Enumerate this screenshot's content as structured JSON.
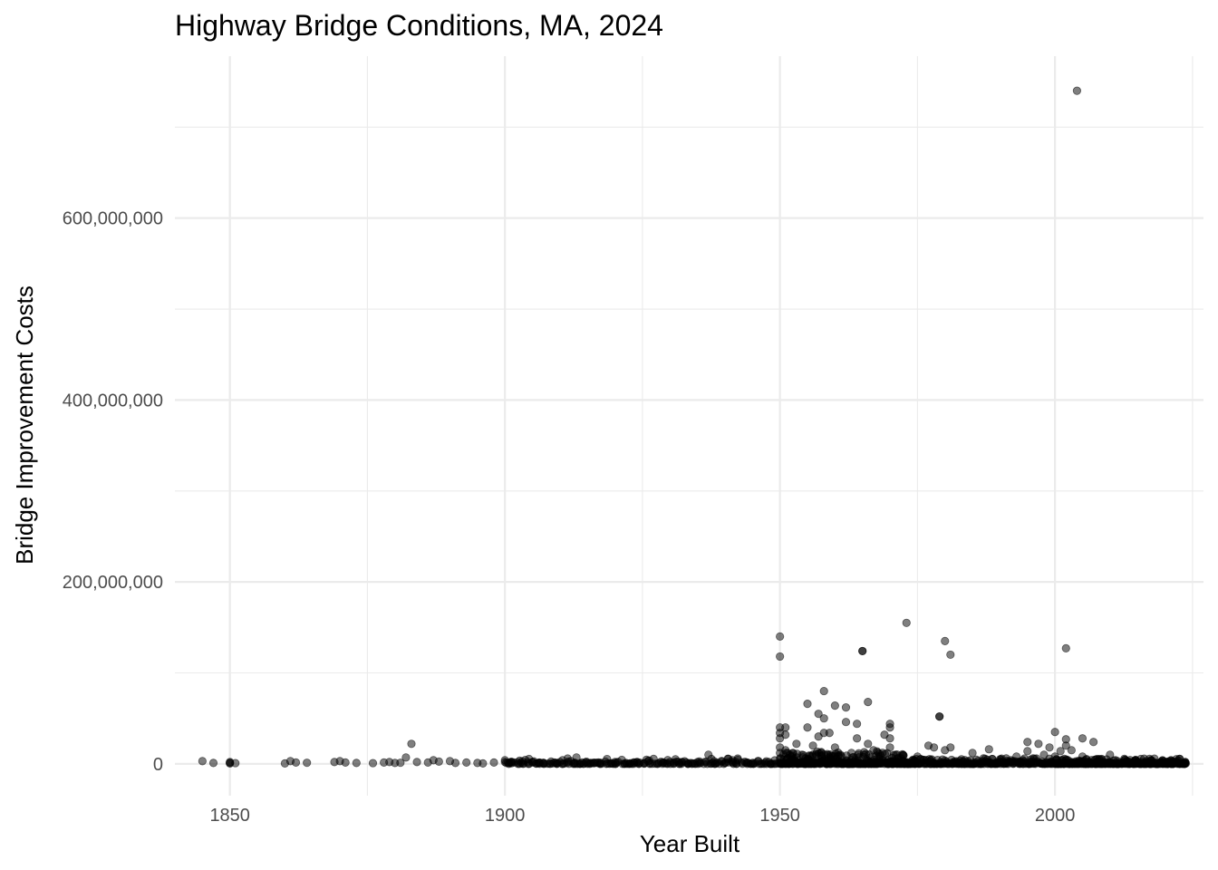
{
  "chart_data": {
    "type": "scatter",
    "title": "Highway Bridge Conditions, MA, 2024",
    "xlabel": "Year Built",
    "ylabel": "Bridge Improvement Costs",
    "xlim": [
      1840,
      2027
    ],
    "ylim": [
      -35000000,
      778000000
    ],
    "x_ticks": [
      1850,
      1900,
      1950,
      2000
    ],
    "x_tick_labels": [
      "1850",
      "1900",
      "1950",
      "2000"
    ],
    "y_ticks": [
      0,
      200000000,
      400000000,
      600000000
    ],
    "y_tick_labels": [
      "0",
      "200,000,000",
      "400,000,000",
      "600,000,000"
    ],
    "grid": true,
    "legend": "none",
    "point_color": "#000000",
    "point_opacity": 0.5,
    "points": [
      [
        1845,
        3000000
      ],
      [
        1847,
        1000000
      ],
      [
        1850,
        1000000
      ],
      [
        1850,
        500000
      ],
      [
        1850,
        2000000
      ],
      [
        1851,
        800000
      ],
      [
        1860,
        500000
      ],
      [
        1861,
        3000000
      ],
      [
        1862,
        1500000
      ],
      [
        1864,
        1200000
      ],
      [
        1869,
        2000000
      ],
      [
        1870,
        3000000
      ],
      [
        1871,
        1500000
      ],
      [
        1873,
        1000000
      ],
      [
        1876,
        800000
      ],
      [
        1878,
        1500000
      ],
      [
        1879,
        2000000
      ],
      [
        1880,
        1000000
      ],
      [
        1881,
        1200000
      ],
      [
        1882,
        7000000
      ],
      [
        1883,
        22000000
      ],
      [
        1884,
        2000000
      ],
      [
        1886,
        1500000
      ],
      [
        1887,
        4000000
      ],
      [
        1888,
        2500000
      ],
      [
        1890,
        3000000
      ],
      [
        1891,
        1000000
      ],
      [
        1893,
        1500000
      ],
      [
        1895,
        1000000
      ],
      [
        1896,
        500000
      ],
      [
        1898,
        1500000
      ],
      [
        1900,
        4000000
      ],
      [
        1900,
        2000000
      ],
      [
        1901,
        1500000
      ],
      [
        1903,
        1000000
      ],
      [
        1905,
        2000000
      ],
      [
        1907,
        1000000
      ],
      [
        1909,
        1500000
      ],
      [
        1910,
        2000000
      ],
      [
        1912,
        3000000
      ],
      [
        1913,
        7000000
      ],
      [
        1914,
        1500000
      ],
      [
        1915,
        1000000
      ],
      [
        1917,
        1500000
      ],
      [
        1920,
        2000000
      ],
      [
        1922,
        1000000
      ],
      [
        1924,
        1500000
      ],
      [
        1926,
        3000000
      ],
      [
        1928,
        1000000
      ],
      [
        1930,
        2000000
      ],
      [
        1931,
        5000000
      ],
      [
        1933,
        1500000
      ],
      [
        1935,
        2000000
      ],
      [
        1937,
        10000000
      ],
      [
        1938,
        3000000
      ],
      [
        1940,
        1000000
      ],
      [
        1942,
        2000000
      ],
      [
        1944,
        1500000
      ],
      [
        1946,
        3000000
      ],
      [
        1948,
        2000000
      ],
      [
        1950,
        140000000
      ],
      [
        1950,
        118000000
      ],
      [
        1950,
        40000000
      ],
      [
        1950,
        34000000
      ],
      [
        1950,
        28000000
      ],
      [
        1950,
        18000000
      ],
      [
        1950,
        12000000
      ],
      [
        1950,
        6000000
      ],
      [
        1951,
        40000000
      ],
      [
        1951,
        32000000
      ],
      [
        1951,
        15000000
      ],
      [
        1952,
        8000000
      ],
      [
        1953,
        22000000
      ],
      [
        1954,
        10000000
      ],
      [
        1955,
        66000000
      ],
      [
        1955,
        40000000
      ],
      [
        1956,
        20000000
      ],
      [
        1957,
        55000000
      ],
      [
        1957,
        30000000
      ],
      [
        1958,
        50000000
      ],
      [
        1958,
        80000000
      ],
      [
        1958,
        34000000
      ],
      [
        1959,
        34000000
      ],
      [
        1960,
        64000000
      ],
      [
        1960,
        18000000
      ],
      [
        1961,
        10000000
      ],
      [
        1962,
        46000000
      ],
      [
        1962,
        62000000
      ],
      [
        1963,
        12000000
      ],
      [
        1964,
        28000000
      ],
      [
        1964,
        44000000
      ],
      [
        1965,
        124000000
      ],
      [
        1965,
        124000000
      ],
      [
        1966,
        22000000
      ],
      [
        1966,
        68000000
      ],
      [
        1967,
        15000000
      ],
      [
        1968,
        8000000
      ],
      [
        1969,
        32000000
      ],
      [
        1970,
        44000000
      ],
      [
        1970,
        40000000
      ],
      [
        1970,
        28000000
      ],
      [
        1970,
        18000000
      ],
      [
        1971,
        10000000
      ],
      [
        1972,
        6000000
      ],
      [
        1973,
        155000000
      ],
      [
        1975,
        8000000
      ],
      [
        1977,
        20000000
      ],
      [
        1978,
        18000000
      ],
      [
        1979,
        52000000
      ],
      [
        1979,
        52000000
      ],
      [
        1980,
        135000000
      ],
      [
        1980,
        15000000
      ],
      [
        1981,
        120000000
      ],
      [
        1981,
        18000000
      ],
      [
        1983,
        5000000
      ],
      [
        1985,
        12000000
      ],
      [
        1987,
        6000000
      ],
      [
        1988,
        16000000
      ],
      [
        1990,
        5000000
      ],
      [
        1992,
        4000000
      ],
      [
        1993,
        8000000
      ],
      [
        1995,
        24000000
      ],
      [
        1995,
        14000000
      ],
      [
        1996,
        6000000
      ],
      [
        1997,
        22000000
      ],
      [
        1998,
        10000000
      ],
      [
        1999,
        18000000
      ],
      [
        2000,
        35000000
      ],
      [
        2000,
        8000000
      ],
      [
        2001,
        14000000
      ],
      [
        2002,
        27000000
      ],
      [
        2002,
        127000000
      ],
      [
        2002,
        20000000
      ],
      [
        2003,
        15000000
      ],
      [
        2004,
        740000000
      ],
      [
        2005,
        28000000
      ],
      [
        2005,
        8000000
      ],
      [
        2007,
        24000000
      ],
      [
        2008,
        5000000
      ],
      [
        2010,
        10000000
      ],
      [
        2011,
        4000000
      ],
      [
        2013,
        3000000
      ],
      [
        2015,
        2000000
      ],
      [
        2017,
        1500000
      ],
      [
        2019,
        1000000
      ],
      [
        2021,
        800000
      ],
      [
        2023,
        500000
      ]
    ]
  }
}
